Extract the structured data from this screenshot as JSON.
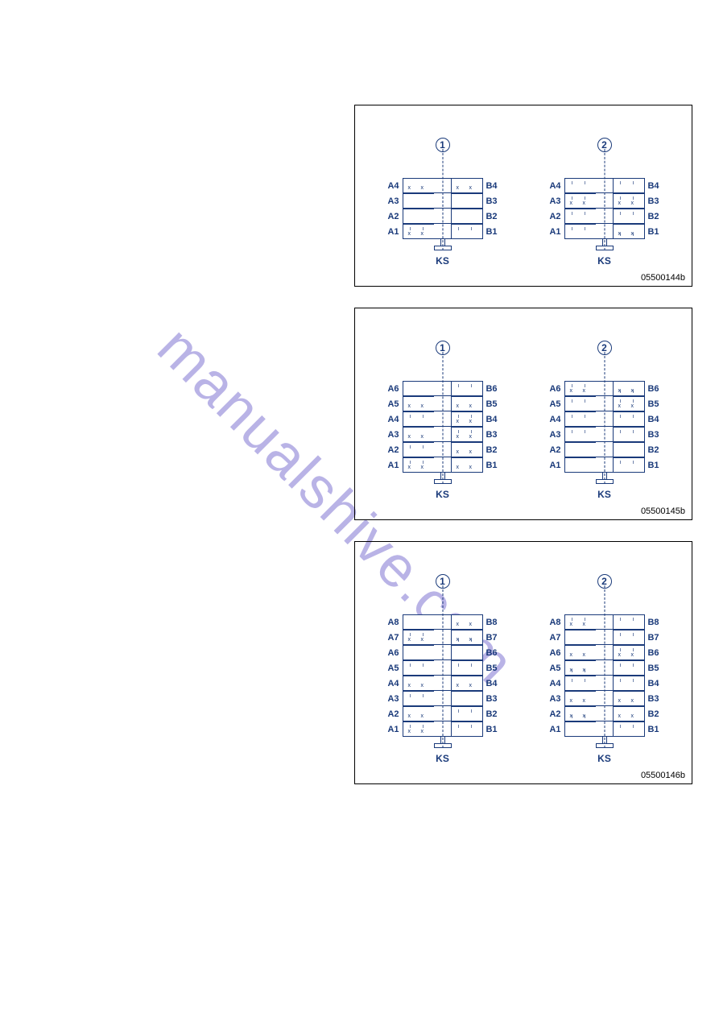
{
  "document": {
    "watermark_text": "manualshive.com",
    "watermark_color": "#b9b3e6"
  },
  "colors": {
    "label": "#1a3a7a",
    "border": "#1a3a7a",
    "bg": "#ffffff",
    "text": "#000000"
  },
  "ks_label": "KS",
  "diagrams": [
    {
      "figure_id": "05500144b",
      "rows": 4,
      "units": [
        {
          "num": "1",
          "left_labels": [
            "A4",
            "A3",
            "A2",
            "A1"
          ],
          "right_labels": [
            "B4",
            "B3",
            "B2",
            "B1"
          ],
          "left_marks": [
            "xx",
            "",
            "",
            "ii_xx"
          ],
          "right_marks": [
            "xx",
            "",
            "",
            "ii"
          ]
        },
        {
          "num": "2",
          "left_labels": [
            "A4",
            "A3",
            "A2",
            "A1"
          ],
          "right_labels": [
            "B4",
            "B3",
            "B2",
            "B1"
          ],
          "left_marks": [
            "ii",
            "ii_xx",
            "ii",
            "ii"
          ],
          "right_marks": [
            "ii",
            "ii_xx",
            "ii",
            "xx_ii"
          ]
        }
      ]
    },
    {
      "figure_id": "05500145b",
      "rows": 6,
      "units": [
        {
          "num": "1",
          "left_labels": [
            "A6",
            "A5",
            "A4",
            "A3",
            "A2",
            "A1"
          ],
          "right_labels": [
            "B6",
            "B5",
            "B4",
            "B3",
            "B2",
            "B1"
          ],
          "left_marks": [
            "",
            "xx",
            "ii",
            "xx",
            "ii",
            "ii_xx"
          ],
          "right_marks": [
            "ii",
            "xx",
            "ii_xx",
            "ii_xx",
            "xx",
            "xx"
          ]
        },
        {
          "num": "2",
          "left_labels": [
            "A6",
            "A5",
            "A4",
            "A3",
            "A2",
            "A1"
          ],
          "right_labels": [
            "B6",
            "B5",
            "B4",
            "B3",
            "B2",
            "B1"
          ],
          "left_marks": [
            "ii_xx",
            "ii",
            "ii",
            "ii",
            "",
            ""
          ],
          "right_marks": [
            "xx_ii",
            "ii_xx",
            "ii",
            "ii",
            "",
            "ii"
          ]
        }
      ]
    },
    {
      "figure_id": "05500146b",
      "rows": 8,
      "units": [
        {
          "num": "1",
          "left_labels": [
            "A8",
            "A7",
            "A6",
            "A5",
            "A4",
            "A3",
            "A2",
            "A1"
          ],
          "right_labels": [
            "B8",
            "B7",
            "B6",
            "B5",
            "B4",
            "B3",
            "B2",
            "B1"
          ],
          "left_marks": [
            "",
            "ii_xx",
            "",
            "ii",
            "xx",
            "ii",
            "xx",
            "ii_xx"
          ],
          "right_marks": [
            "xx",
            "xx_ii",
            "",
            "ii",
            "xx",
            "",
            "ii",
            "ii"
          ]
        },
        {
          "num": "2",
          "left_labels": [
            "A8",
            "A7",
            "A6",
            "A5",
            "A4",
            "A3",
            "A2",
            "A1"
          ],
          "right_labels": [
            "B8",
            "B7",
            "B6",
            "B5",
            "B4",
            "B3",
            "B2",
            "B1"
          ],
          "left_marks": [
            "ii_xx",
            "",
            "xx",
            "xx_ii",
            "ii",
            "xx",
            "xx_ii",
            ""
          ],
          "right_marks": [
            "ii",
            "ii",
            "ii_xx",
            "ii",
            "ii",
            "xx",
            "xx",
            "ii"
          ]
        }
      ]
    }
  ]
}
